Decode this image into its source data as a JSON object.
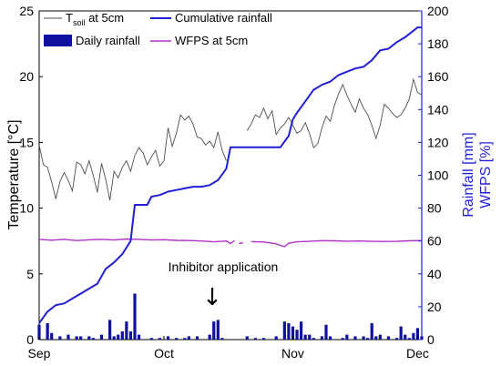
{
  "chart_data": {
    "type": "line",
    "x_axis": {
      "ticks": [
        "Sep",
        "Oct",
        "Nov",
        "Dec"
      ],
      "tick_days": [
        0,
        30,
        61,
        91
      ]
    },
    "y_left": {
      "label": "Temperature [°C]",
      "range": [
        0,
        25
      ],
      "ticks": [
        "0",
        "5",
        "10",
        "15",
        "20",
        "25"
      ]
    },
    "y_right": {
      "label1": "Rainfall [mm]",
      "label2": "WFPS [%]",
      "range": [
        0,
        200
      ],
      "ticks": [
        "0",
        "20",
        "40",
        "60",
        "80",
        "100",
        "120",
        "140",
        "160",
        "180",
        "200"
      ]
    },
    "legend": {
      "placement": "top-left",
      "entries": [
        "T",
        "soil",
        " at 5cm",
        "Cumulative rainfall",
        "Daily rainfall",
        "WFPS at 5cm"
      ]
    },
    "annotation": {
      "text": "Inhibitor application",
      "arrow": "↓",
      "day": 40
    },
    "colors": {
      "temp": "#4d4d4d",
      "cumulative": "#1f1fd6",
      "daily": "#1010a0",
      "wfps": "#b030c8",
      "right_axis": "#1f1fd6"
    },
    "series": [
      {
        "name": "Tsoil at 5cm",
        "axis": "left",
        "segments": [
          [
            [
              0,
              14.8
            ],
            [
              1,
              13.3
            ],
            [
              2,
              13.1
            ],
            [
              3,
              12
            ],
            [
              4,
              10.7
            ],
            [
              5,
              12
            ],
            [
              6,
              12.7
            ],
            [
              7,
              12.1
            ],
            [
              8,
              11.3
            ],
            [
              9,
              13.5
            ],
            [
              10,
              13.3
            ],
            [
              11,
              12.6
            ],
            [
              12,
              13.6
            ],
            [
              13,
              12.5
            ],
            [
              14,
              11.2
            ],
            [
              15,
              13.4
            ],
            [
              16,
              12.2
            ],
            [
              17,
              10.6
            ],
            [
              18,
              12.8
            ],
            [
              19,
              12.3
            ],
            [
              20,
              13.1
            ],
            [
              21,
              13.6
            ],
            [
              22,
              12.8
            ],
            [
              23,
              14
            ],
            [
              24,
              14.6
            ],
            [
              25,
              14.2
            ],
            [
              26,
              13.3
            ],
            [
              27,
              13.9
            ],
            [
              28,
              14.4
            ],
            [
              29,
              13.2
            ],
            [
              30,
              13.6
            ],
            [
              31,
              16.1
            ],
            [
              32,
              14.7
            ],
            [
              33,
              15.7
            ],
            [
              34,
              17.1
            ],
            [
              35,
              16.7
            ],
            [
              36,
              17
            ],
            [
              37,
              16.4
            ],
            [
              38,
              15.4
            ],
            [
              39,
              15.3
            ],
            [
              40,
              14.8
            ],
            [
              41,
              15.1
            ],
            [
              42,
              14.6
            ],
            [
              43,
              15.8
            ],
            [
              44,
              14.4
            ],
            [
              45,
              13.6
            ]
          ],
          [
            [
              50,
              15.9
            ],
            [
              51,
              16.4
            ],
            [
              52,
              17.1
            ],
            [
              53,
              16.9
            ],
            [
              54,
              17.6
            ],
            [
              55,
              16.8
            ],
            [
              56,
              17.4
            ],
            [
              57,
              15.6
            ],
            [
              58,
              16.1
            ],
            [
              59,
              16.4
            ],
            [
              60,
              16.9
            ],
            [
              61,
              16.3
            ],
            [
              62,
              15.7
            ],
            [
              63,
              15.9
            ],
            [
              64,
              16.5
            ],
            [
              65,
              15.7
            ],
            [
              66,
              14.6
            ],
            [
              67,
              14.9
            ],
            [
              68,
              16.1
            ],
            [
              69,
              17
            ],
            [
              70,
              16.6
            ],
            [
              71,
              17.8
            ],
            [
              72,
              18.7
            ],
            [
              73,
              19.4
            ],
            [
              74,
              18.6
            ],
            [
              75,
              17.9
            ],
            [
              76,
              17.3
            ],
            [
              77,
              18.3
            ],
            [
              78,
              17.6
            ],
            [
              79,
              17.1
            ],
            [
              80,
              16.3
            ],
            [
              81,
              15.3
            ],
            [
              82,
              16.3
            ],
            [
              83,
              17.9
            ],
            [
              84,
              17.6
            ],
            [
              85,
              17.2
            ],
            [
              86,
              16.9
            ],
            [
              87,
              17.1
            ],
            [
              88,
              17.6
            ],
            [
              89,
              18.3
            ],
            [
              90,
              19.8
            ],
            [
              91,
              18.8
            ],
            [
              92,
              18.6
            ]
          ]
        ]
      },
      {
        "name": "Cumulative rainfall",
        "axis": "right",
        "points": [
          [
            0,
            10
          ],
          [
            2,
            17
          ],
          [
            4,
            21
          ],
          [
            6,
            22
          ],
          [
            8,
            25
          ],
          [
            10,
            28
          ],
          [
            12,
            31
          ],
          [
            14,
            34
          ],
          [
            16,
            43
          ],
          [
            18,
            47
          ],
          [
            20,
            52
          ],
          [
            22,
            60
          ],
          [
            23,
            82
          ],
          [
            24,
            82
          ],
          [
            26,
            82
          ],
          [
            27,
            87
          ],
          [
            29,
            88
          ],
          [
            31,
            90
          ],
          [
            33,
            91
          ],
          [
            35,
            92
          ],
          [
            37,
            93
          ],
          [
            39,
            93
          ],
          [
            41,
            94
          ],
          [
            43,
            97
          ],
          [
            45,
            104
          ],
          [
            46,
            117
          ],
          [
            48,
            117
          ],
          [
            50,
            117
          ],
          [
            52,
            117
          ],
          [
            54,
            117
          ],
          [
            56,
            117
          ],
          [
            58,
            117
          ],
          [
            60,
            124
          ],
          [
            61,
            134
          ],
          [
            62,
            138
          ],
          [
            64,
            145
          ],
          [
            66,
            152
          ],
          [
            68,
            155
          ],
          [
            70,
            157
          ],
          [
            72,
            161
          ],
          [
            74,
            163
          ],
          [
            76,
            165
          ],
          [
            78,
            166
          ],
          [
            80,
            170
          ],
          [
            82,
            176
          ],
          [
            84,
            177
          ],
          [
            86,
            181
          ],
          [
            88,
            184
          ],
          [
            90,
            188
          ],
          [
            91,
            190
          ],
          [
            92,
            190
          ]
        ]
      },
      {
        "name": "WFPS at 5cm",
        "axis": "right",
        "segments": [
          [
            [
              0,
              61
            ],
            [
              3,
              60.5
            ],
            [
              6,
              61
            ],
            [
              9,
              60.3
            ],
            [
              12,
              60.7
            ],
            [
              15,
              61
            ],
            [
              18,
              60.6
            ],
            [
              21,
              61.2
            ],
            [
              24,
              61
            ],
            [
              27,
              60.6
            ],
            [
              30,
              60.8
            ],
            [
              33,
              60.4
            ],
            [
              36,
              60.3
            ],
            [
              39,
              60
            ],
            [
              42,
              59.5
            ],
            [
              45,
              60
            ],
            [
              46,
              58.5
            ],
            [
              47,
              60.3
            ]
          ],
          [
            [
              48,
              58.4
            ],
            [
              49,
              58.9
            ]
          ],
          [
            [
              51,
              59.6
            ],
            [
              54,
              59.4
            ],
            [
              57,
              58.3
            ],
            [
              59,
              56.5
            ],
            [
              60,
              58.6
            ],
            [
              62,
              59.5
            ],
            [
              65,
              59.8
            ],
            [
              68,
              60.2
            ],
            [
              71,
              60.1
            ],
            [
              74,
              59.9
            ],
            [
              77,
              60
            ],
            [
              80,
              59.8
            ],
            [
              83,
              59.7
            ],
            [
              86,
              59.8
            ],
            [
              89,
              60.1
            ],
            [
              92,
              60.3
            ]
          ]
        ]
      },
      {
        "name": "Daily rainfall",
        "axis": "right",
        "type": "bar",
        "points": [
          [
            0,
            9
          ],
          [
            2,
            10
          ],
          [
            3,
            4
          ],
          [
            5,
            2
          ],
          [
            7,
            3
          ],
          [
            9,
            2
          ],
          [
            10,
            2
          ],
          [
            12,
            2
          ],
          [
            13,
            1
          ],
          [
            15,
            3
          ],
          [
            17,
            12
          ],
          [
            18,
            2
          ],
          [
            19,
            3
          ],
          [
            20,
            5
          ],
          [
            21,
            11
          ],
          [
            22,
            5
          ],
          [
            23,
            28
          ],
          [
            24,
            3
          ],
          [
            27,
            1
          ],
          [
            29,
            1
          ],
          [
            31,
            2
          ],
          [
            33,
            1
          ],
          [
            35,
            1
          ],
          [
            36,
            2
          ],
          [
            38,
            2
          ],
          [
            41,
            3
          ],
          [
            42,
            11
          ],
          [
            43,
            12
          ],
          [
            44,
            1
          ],
          [
            50,
            2
          ],
          [
            52,
            1
          ],
          [
            54,
            1
          ],
          [
            57,
            2
          ],
          [
            59,
            11
          ],
          [
            60,
            10
          ],
          [
            61,
            8
          ],
          [
            62,
            6
          ],
          [
            63,
            11
          ],
          [
            64,
            3
          ],
          [
            65,
            3
          ],
          [
            66,
            1
          ],
          [
            68,
            2
          ],
          [
            69,
            9
          ],
          [
            70,
            2
          ],
          [
            73,
            1
          ],
          [
            74,
            3
          ],
          [
            76,
            2
          ],
          [
            78,
            2
          ],
          [
            79,
            1
          ],
          [
            80,
            10
          ],
          [
            81,
            2
          ],
          [
            82,
            3
          ],
          [
            84,
            2
          ],
          [
            86,
            1
          ],
          [
            87,
            8
          ],
          [
            88,
            3
          ],
          [
            89,
            1
          ],
          [
            90,
            4
          ],
          [
            91,
            7
          ],
          [
            92,
            2
          ]
        ]
      }
    ]
  }
}
